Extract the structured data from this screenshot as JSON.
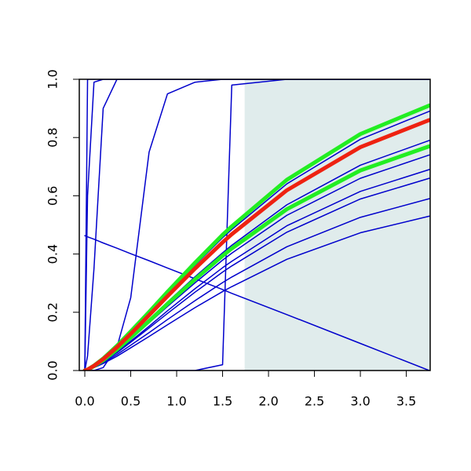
{
  "chart_data": {
    "type": "line",
    "x": [
      0,
      0.03,
      0.1,
      0.2,
      0.35,
      0.5,
      0.7,
      0.9,
      1.2,
      1.5,
      1.6,
      2.2,
      3.0,
      3.75
    ],
    "xlim": [
      -0.06,
      3.76
    ],
    "ylim": [
      0,
      1
    ],
    "xticks": [
      {
        "value": 0,
        "label": "0.0"
      },
      {
        "value": 0.5,
        "label": "0.5"
      },
      {
        "value": 1,
        "label": "1.0"
      },
      {
        "value": 1.5,
        "label": "1.5"
      },
      {
        "value": 2,
        "label": "2.0"
      },
      {
        "value": 2.5,
        "label": "2.5"
      },
      {
        "value": 3,
        "label": "3.0"
      },
      {
        "value": 3.5,
        "label": "3.5"
      }
    ],
    "yticks": [
      {
        "value": 0,
        "label": "0.0"
      },
      {
        "value": 0.2,
        "label": "0.2"
      },
      {
        "value": 0.4,
        "label": "0.4"
      },
      {
        "value": 0.6,
        "label": "0.6"
      },
      {
        "value": 0.8,
        "label": "0.8"
      },
      {
        "value": 1,
        "label": "1.0"
      }
    ],
    "shade": {
      "from": 1.74,
      "color": "#e0ecec"
    },
    "series": [
      {
        "color": "#0000cc",
        "width": 1.5,
        "values": [
          0,
          1,
          1,
          1,
          1,
          1,
          1,
          1,
          1,
          1,
          1,
          1,
          1,
          1
        ]
      },
      {
        "color": "#0000cc",
        "width": 1.5,
        "values": [
          0,
          0.6,
          0.99,
          1,
          1,
          1,
          1,
          1,
          1,
          1,
          1,
          1,
          1,
          1
        ]
      },
      {
        "color": "#0000cc",
        "width": 1.5,
        "values": [
          0,
          0.05,
          0.35,
          0.9,
          1,
          1,
          1,
          1,
          1,
          1,
          1,
          1,
          1,
          1
        ]
      },
      {
        "color": "#0000cc",
        "width": 1.5,
        "values": [
          0,
          0,
          0,
          0.01,
          0.08,
          0.25,
          0.75,
          0.95,
          0.99,
          1,
          1,
          1,
          1,
          1
        ]
      },
      {
        "color": "#0000cc",
        "width": 1.5,
        "values": [
          0,
          0,
          0,
          0,
          0,
          0,
          0,
          0,
          0,
          0.02,
          0.98,
          1,
          1,
          1
        ]
      },
      {
        "color": "#0000cc",
        "width": 1.5,
        "values": [
          0.463,
          0.459,
          0.451,
          0.438,
          0.42,
          0.401,
          0.377,
          0.352,
          0.315,
          0.278,
          0.265,
          0.192,
          0.093,
          0
        ]
      },
      {
        "color": "#0000cc",
        "width": 1.5,
        "values": [
          0,
          0.003,
          0.017,
          0.04,
          0.083,
          0.131,
          0.197,
          0.264,
          0.362,
          0.456,
          0.484,
          0.641,
          0.794,
          0.89
        ]
      },
      {
        "color": "#0000cc",
        "width": 1.5,
        "values": [
          0,
          0.002,
          0.015,
          0.036,
          0.073,
          0.116,
          0.175,
          0.235,
          0.322,
          0.404,
          0.43,
          0.569,
          0.705,
          0.79
        ]
      },
      {
        "color": "#0000cc",
        "width": 1.5,
        "values": [
          0,
          0.002,
          0.014,
          0.033,
          0.069,
          0.109,
          0.164,
          0.22,
          0.301,
          0.379,
          0.403,
          0.533,
          0.66,
          0.74
        ]
      },
      {
        "color": "#0000cc",
        "width": 1.5,
        "values": [
          0,
          0.002,
          0.013,
          0.031,
          0.064,
          0.101,
          0.152,
          0.205,
          0.281,
          0.353,
          0.375,
          0.497,
          0.615,
          0.69
        ]
      },
      {
        "color": "#0000cc",
        "width": 1.5,
        "values": [
          0,
          0.002,
          0.013,
          0.03,
          0.061,
          0.097,
          0.146,
          0.196,
          0.269,
          0.338,
          0.359,
          0.475,
          0.589,
          0.66
        ]
      },
      {
        "color": "#0000cc",
        "width": 1.5,
        "values": [
          0,
          0.002,
          0.011,
          0.027,
          0.055,
          0.087,
          0.13,
          0.175,
          0.24,
          0.302,
          0.321,
          0.425,
          0.526,
          0.59
        ]
      },
      {
        "color": "#0000cc",
        "width": 1.5,
        "values": [
          0,
          0.002,
          0.01,
          0.024,
          0.049,
          0.078,
          0.117,
          0.157,
          0.216,
          0.271,
          0.288,
          0.382,
          0.473,
          0.53
        ]
      },
      {
        "color": "#22ee22",
        "width": 5,
        "values": [
          0,
          0.003,
          0.017,
          0.041,
          0.085,
          0.134,
          0.201,
          0.27,
          0.37,
          0.466,
          0.495,
          0.655,
          0.812,
          0.91
        ]
      },
      {
        "color": "#22ee22",
        "width": 5,
        "values": [
          0,
          0.002,
          0.015,
          0.035,
          0.072,
          0.113,
          0.17,
          0.229,
          0.313,
          0.394,
          0.419,
          0.554,
          0.687,
          0.77
        ]
      },
      {
        "color": "#ee2211",
        "width": 5,
        "values": [
          0,
          0.003,
          0.016,
          0.039,
          0.08,
          0.126,
          0.19,
          0.255,
          0.35,
          0.44,
          0.468,
          0.619,
          0.767,
          0.86
        ]
      }
    ]
  }
}
